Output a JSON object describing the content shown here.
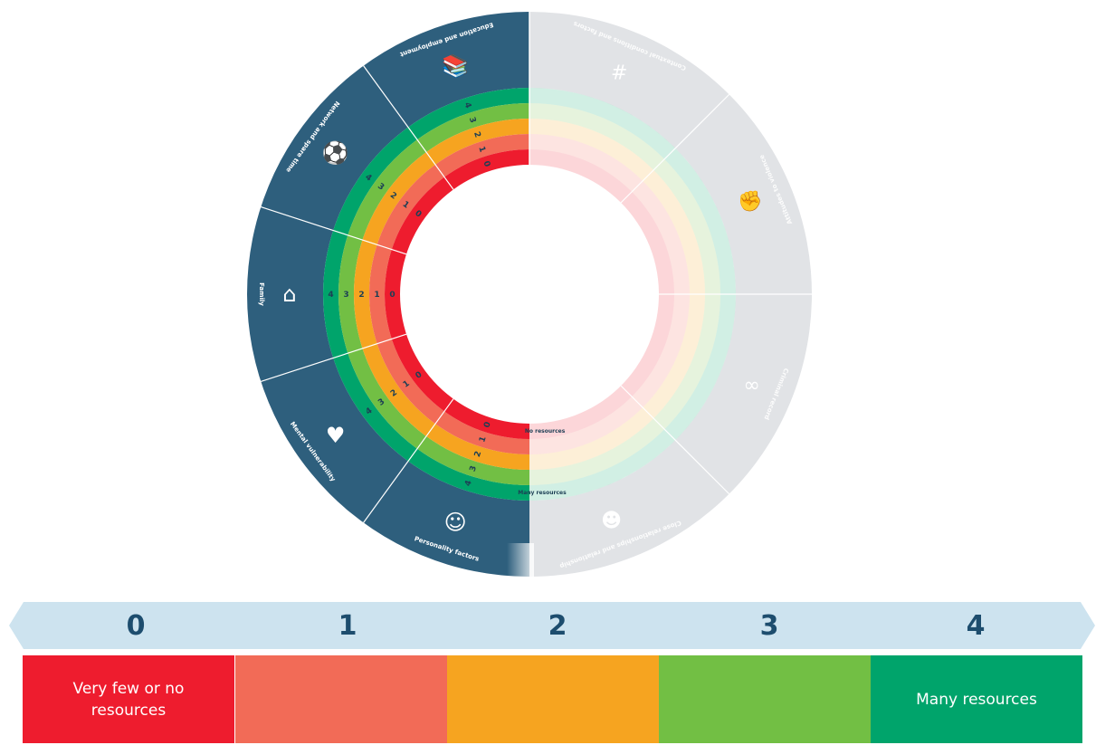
{
  "wheel": {
    "segments_active": [
      {
        "label": "Education and employment",
        "icon": "books-icon"
      },
      {
        "label": "Network and spare time",
        "icon": "soccer-ball-icon"
      },
      {
        "label": "Family",
        "icon": "house-heart-icon"
      },
      {
        "label": "Mental vulnerability",
        "icon": "heart-icon"
      },
      {
        "label": "Personality factors",
        "icon": "faces-icon"
      }
    ],
    "segments_faded": [
      {
        "label": "Contextual conditions and factors",
        "icon": "cage-icon"
      },
      {
        "label": "Attitudes to violence",
        "icon": "fist-icon"
      },
      {
        "label": "Criminal record",
        "icon": "handcuffs-icon"
      },
      {
        "label": "Close relationships and relationship",
        "icon": "people-icon"
      }
    ],
    "ring_levels": [
      "0",
      "1",
      "2",
      "3",
      "4"
    ],
    "level_0_caption": "No resources",
    "level_4_caption": "Many resources"
  },
  "scale": {
    "levels": [
      "0",
      "1",
      "2",
      "3",
      "4"
    ],
    "labels": [
      "Very few or no resources",
      "",
      "",
      "",
      "Many resources"
    ],
    "colors": [
      "#ee1c2e",
      "#f26b57",
      "#f6a420",
      "#72bf44",
      "#00a46b"
    ],
    "arrow_color": "#cde3ef",
    "number_color": "#1d4d6e"
  },
  "colors": {
    "segment_dark": "#2e5f7d",
    "segment_faded": "#e1e3e6"
  }
}
